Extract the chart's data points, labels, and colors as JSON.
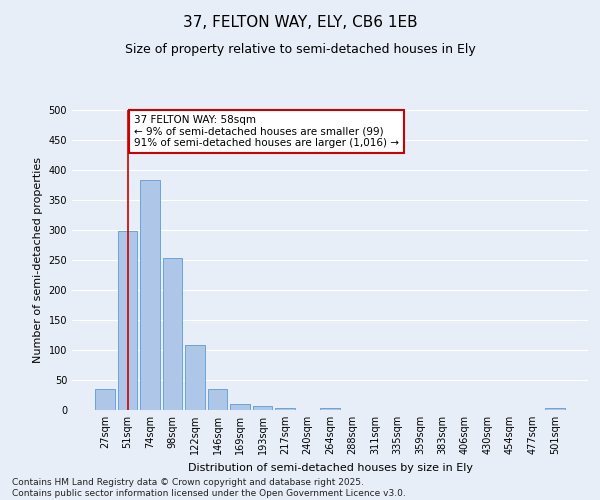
{
  "title": "37, FELTON WAY, ELY, CB6 1EB",
  "subtitle": "Size of property relative to semi-detached houses in Ely",
  "xlabel": "Distribution of semi-detached houses by size in Ely",
  "ylabel": "Number of semi-detached properties",
  "categories": [
    "27sqm",
    "51sqm",
    "74sqm",
    "98sqm",
    "122sqm",
    "146sqm",
    "169sqm",
    "193sqm",
    "217sqm",
    "240sqm",
    "264sqm",
    "288sqm",
    "311sqm",
    "335sqm",
    "359sqm",
    "383sqm",
    "406sqm",
    "430sqm",
    "454sqm",
    "477sqm",
    "501sqm"
  ],
  "bar_heights": [
    35,
    298,
    383,
    253,
    108,
    35,
    10,
    7,
    4,
    0,
    3,
    0,
    0,
    0,
    0,
    0,
    0,
    0,
    0,
    0,
    3
  ],
  "bar_color": "#aec6e8",
  "bar_edge_color": "#5b9bd5",
  "vline_x": 1,
  "vline_color": "#cc0000",
  "annotation_text": "37 FELTON WAY: 58sqm\n← 9% of semi-detached houses are smaller (99)\n91% of semi-detached houses are larger (1,016) →",
  "annotation_box_color": "#ffffff",
  "annotation_box_edge_color": "#cc0000",
  "ylim": [
    0,
    500
  ],
  "yticks": [
    0,
    50,
    100,
    150,
    200,
    250,
    300,
    350,
    400,
    450,
    500
  ],
  "background_color": "#e8eef7",
  "grid_color": "#ffffff",
  "footer": "Contains HM Land Registry data © Crown copyright and database right 2025.\nContains public sector information licensed under the Open Government Licence v3.0.",
  "title_fontsize": 11,
  "subtitle_fontsize": 9,
  "label_fontsize": 8,
  "tick_fontsize": 7,
  "footer_fontsize": 6.5,
  "annotation_fontsize": 7.5
}
